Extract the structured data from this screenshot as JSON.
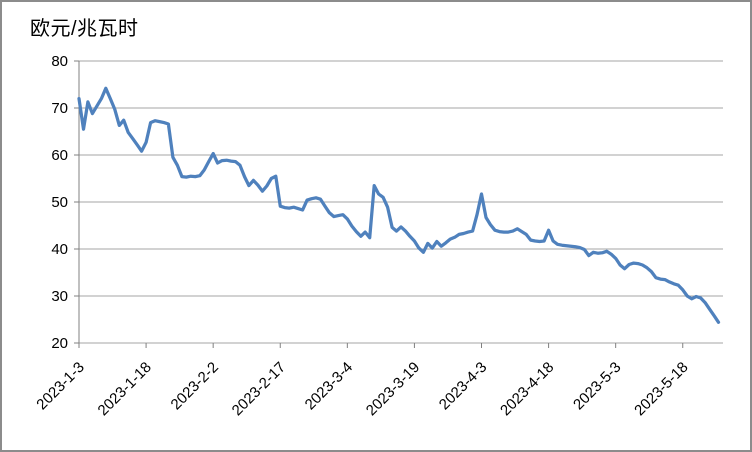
{
  "chart_data": {
    "type": "line",
    "title": "欧元/兆瓦时",
    "xlabel": "",
    "ylabel": "欧元/兆瓦时",
    "ylim": [
      20,
      80
    ],
    "y_ticks": [
      20,
      30,
      40,
      50,
      60,
      70,
      80
    ],
    "grid": "horizontal",
    "legend": "none",
    "line_color": "#4F81BD",
    "gridline_color": "#A6A6A6",
    "axis_color": "#808080",
    "tick_label_color": "#000000",
    "frame_border_color": "#8C8C8C",
    "background": "#FFFFFF",
    "x_tick_labels": [
      "2023-1-3",
      "2023-1-18",
      "2023-2-2",
      "2023-2-17",
      "2023-3-4",
      "2023-3-19",
      "2023-4-3",
      "2023-4-18",
      "2023-5-3",
      "2023-5-18"
    ],
    "x_tick_interval_days": 15,
    "x": [
      "2023-1-3",
      "2023-1-4",
      "2023-1-5",
      "2023-1-6",
      "2023-1-7",
      "2023-1-8",
      "2023-1-9",
      "2023-1-10",
      "2023-1-11",
      "2023-1-12",
      "2023-1-13",
      "2023-1-14",
      "2023-1-15",
      "2023-1-16",
      "2023-1-17",
      "2023-1-18",
      "2023-1-19",
      "2023-1-20",
      "2023-1-21",
      "2023-1-22",
      "2023-1-23",
      "2023-1-24",
      "2023-1-25",
      "2023-1-26",
      "2023-1-27",
      "2023-1-28",
      "2023-1-29",
      "2023-1-30",
      "2023-1-31",
      "2023-2-1",
      "2023-2-2",
      "2023-2-3",
      "2023-2-4",
      "2023-2-5",
      "2023-2-6",
      "2023-2-7",
      "2023-2-8",
      "2023-2-9",
      "2023-2-10",
      "2023-2-11",
      "2023-2-12",
      "2023-2-13",
      "2023-2-14",
      "2023-2-15",
      "2023-2-16",
      "2023-2-17",
      "2023-2-18",
      "2023-2-19",
      "2023-2-20",
      "2023-2-21",
      "2023-2-22",
      "2023-2-23",
      "2023-2-24",
      "2023-2-25",
      "2023-2-26",
      "2023-2-27",
      "2023-2-28",
      "2023-3-1",
      "2023-3-2",
      "2023-3-3",
      "2023-3-4",
      "2023-3-5",
      "2023-3-6",
      "2023-3-7",
      "2023-3-8",
      "2023-3-9",
      "2023-3-10",
      "2023-3-11",
      "2023-3-12",
      "2023-3-13",
      "2023-3-14",
      "2023-3-15",
      "2023-3-16",
      "2023-3-17",
      "2023-3-18",
      "2023-3-19",
      "2023-3-20",
      "2023-3-21",
      "2023-3-22",
      "2023-3-23",
      "2023-3-24",
      "2023-3-25",
      "2023-3-26",
      "2023-3-27",
      "2023-3-28",
      "2023-3-29",
      "2023-3-30",
      "2023-3-31",
      "2023-4-1",
      "2023-4-2",
      "2023-4-3",
      "2023-4-4",
      "2023-4-5",
      "2023-4-6",
      "2023-4-7",
      "2023-4-8",
      "2023-4-9",
      "2023-4-10",
      "2023-4-11",
      "2023-4-12",
      "2023-4-13",
      "2023-4-14",
      "2023-4-15",
      "2023-4-16",
      "2023-4-17",
      "2023-4-18",
      "2023-4-19",
      "2023-4-20",
      "2023-4-21",
      "2023-4-22",
      "2023-4-23",
      "2023-4-24",
      "2023-4-25",
      "2023-4-26",
      "2023-4-27",
      "2023-4-28",
      "2023-4-29",
      "2023-4-30",
      "2023-5-1",
      "2023-5-2",
      "2023-5-3",
      "2023-5-4",
      "2023-5-5",
      "2023-5-6",
      "2023-5-7",
      "2023-5-8",
      "2023-5-9",
      "2023-5-10",
      "2023-5-11",
      "2023-5-12",
      "2023-5-13",
      "2023-5-14",
      "2023-5-15",
      "2023-5-16",
      "2023-5-17",
      "2023-5-18",
      "2023-5-19",
      "2023-5-20",
      "2023-5-21",
      "2023-5-22",
      "2023-5-23",
      "2023-5-24",
      "2023-5-25",
      "2023-5-26"
    ],
    "values": [
      72.0,
      65.5,
      71.3,
      68.8,
      70.4,
      72.0,
      74.2,
      72.0,
      69.7,
      66.3,
      67.4,
      64.8,
      63.5,
      62.2,
      60.8,
      62.7,
      66.9,
      67.3,
      67.1,
      66.9,
      66.6,
      59.5,
      57.8,
      55.4,
      55.3,
      55.5,
      55.4,
      55.6,
      56.8,
      58.6,
      60.3,
      58.3,
      58.8,
      58.9,
      58.7,
      58.6,
      57.8,
      55.4,
      53.5,
      54.6,
      53.6,
      52.3,
      53.4,
      55.0,
      55.5,
      49.1,
      48.8,
      48.7,
      48.9,
      48.6,
      48.3,
      50.4,
      50.7,
      50.9,
      50.6,
      49.1,
      47.7,
      46.9,
      47.1,
      47.3,
      46.4,
      44.9,
      43.7,
      42.7,
      43.6,
      42.4,
      53.5,
      51.7,
      51.0,
      48.9,
      44.6,
      43.8,
      44.7,
      43.8,
      42.7,
      41.7,
      40.2,
      39.3,
      41.2,
      40.2,
      41.6,
      40.6,
      41.3,
      42.1,
      42.5,
      43.1,
      43.3,
      43.6,
      43.8,
      47.3,
      51.7,
      46.7,
      45.2,
      44.0,
      43.7,
      43.6,
      43.6,
      43.8,
      44.3,
      43.7,
      43.1,
      41.9,
      41.7,
      41.6,
      41.7,
      44.0,
      41.7,
      41.0,
      40.8,
      40.7,
      40.6,
      40.5,
      40.3,
      39.9,
      38.6,
      39.3,
      39.1,
      39.2,
      39.5,
      38.9,
      38.0,
      36.6,
      35.8,
      36.7,
      37.0,
      36.9,
      36.6,
      36.0,
      35.2,
      33.9,
      33.6,
      33.5,
      33.0,
      32.6,
      32.3,
      31.3,
      30.0,
      29.4,
      29.9,
      29.6,
      28.6,
      27.2,
      25.8,
      24.4
    ]
  }
}
